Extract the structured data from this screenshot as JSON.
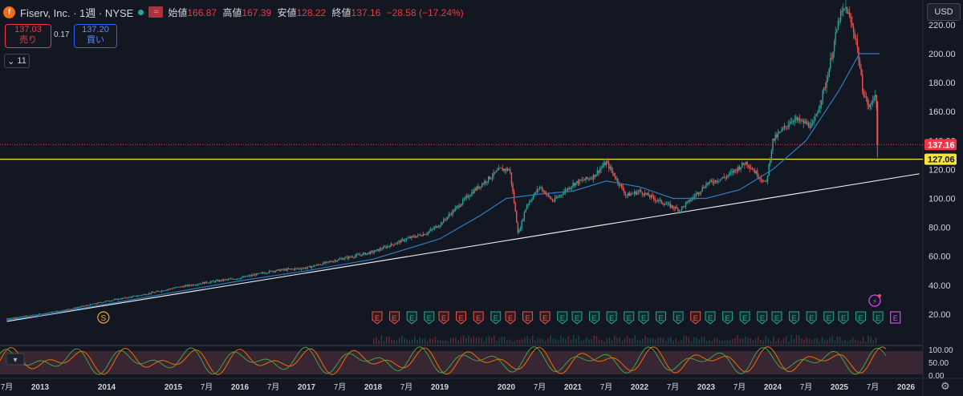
{
  "header": {
    "logo_letter": "f",
    "title": "Fiserv, Inc. · 1週 · NYSE",
    "wave_icon": "≈",
    "open_label": "始値",
    "open": "166.87",
    "high_label": "高値",
    "high": "167.39",
    "low_label": "安値",
    "low": "128.22",
    "close_label": "終値",
    "close": "137.16",
    "change": "−28.58 (−17.24%)"
  },
  "trade": {
    "sell_price": "137.03",
    "sell_label": "売り",
    "spread": "0.17",
    "buy_price": "137.20",
    "buy_label": "買い"
  },
  "indicator_toggle": "11",
  "currency": "USD",
  "colors": {
    "bg": "#131722",
    "up": "#26a69a",
    "down": "#ef5350",
    "ma": "#2e7bbf",
    "yellow": "#f5e342",
    "trend": "#e8e8e8",
    "close_tag": "#f23645"
  },
  "chart_data": {
    "type": "candlestick",
    "ylim": [
      0,
      240
    ],
    "y_ticks": [
      "20.00",
      "40.00",
      "60.00",
      "80.00",
      "100.00",
      "120.00",
      "140.00",
      "160.00",
      "180.00",
      "200.00",
      "220.00"
    ],
    "y_tick_values": [
      20,
      40,
      60,
      80,
      100,
      120,
      140,
      160,
      180,
      200,
      220
    ],
    "x_ticks": [
      "7月",
      "2013",
      "2014",
      "2015",
      "7月",
      "2016",
      "7月",
      "2017",
      "7月",
      "2018",
      "7月",
      "2019",
      "2020",
      "7月",
      "2021",
      "7月",
      "2022",
      "7月",
      "2023",
      "7月",
      "2024",
      "7月",
      "2025",
      "7月",
      "2026"
    ],
    "x_tick_dates": [
      2012.5,
      2013,
      2014,
      2015,
      2015.5,
      2016,
      2016.5,
      2017,
      2017.5,
      2018,
      2018.5,
      2019,
      2020,
      2020.5,
      2021,
      2021.5,
      2022,
      2022.5,
      2023,
      2023.5,
      2024,
      2024.5,
      2025,
      2025.5,
      2026
    ],
    "price_path": [
      [
        2012.5,
        17
      ],
      [
        2013,
        20
      ],
      [
        2013.5,
        24
      ],
      [
        2014,
        29
      ],
      [
        2014.5,
        33
      ],
      [
        2015,
        38
      ],
      [
        2015.5,
        42
      ],
      [
        2016,
        45
      ],
      [
        2016.5,
        50
      ],
      [
        2017,
        52
      ],
      [
        2017.5,
        58
      ],
      [
        2018,
        63
      ],
      [
        2018.5,
        72
      ],
      [
        2018.8,
        76
      ],
      [
        2019,
        82
      ],
      [
        2019.5,
        105
      ],
      [
        2019.9,
        120
      ],
      [
        2020.05,
        120
      ],
      [
        2020.18,
        75
      ],
      [
        2020.3,
        95
      ],
      [
        2020.5,
        108
      ],
      [
        2020.7,
        98
      ],
      [
        2021,
        110
      ],
      [
        2021.3,
        115
      ],
      [
        2021.5,
        125
      ],
      [
        2021.8,
        102
      ],
      [
        2022,
        105
      ],
      [
        2022.3,
        98
      ],
      [
        2022.6,
        92
      ],
      [
        2022.9,
        105
      ],
      [
        2023,
        110
      ],
      [
        2023.3,
        115
      ],
      [
        2023.6,
        125
      ],
      [
        2023.8,
        115
      ],
      [
        2023.9,
        110
      ],
      [
        2024,
        140
      ],
      [
        2024.3,
        155
      ],
      [
        2024.6,
        150
      ],
      [
        2024.8,
        180
      ],
      [
        2025,
        225
      ],
      [
        2025.1,
        232
      ],
      [
        2025.25,
        210
      ],
      [
        2025.35,
        175
      ],
      [
        2025.45,
        162
      ],
      [
        2025.55,
        175
      ],
      [
        2025.57,
        137.16
      ]
    ],
    "ma_path": [
      [
        2012.5,
        16
      ],
      [
        2013,
        19
      ],
      [
        2014,
        27
      ],
      [
        2015,
        35
      ],
      [
        2016,
        43
      ],
      [
        2017,
        50
      ],
      [
        2018,
        58
      ],
      [
        2019,
        72
      ],
      [
        2019.6,
        88
      ],
      [
        2020,
        100
      ],
      [
        2020.5,
        103
      ],
      [
        2021,
        105
      ],
      [
        2021.5,
        112
      ],
      [
        2022,
        108
      ],
      [
        2022.5,
        100
      ],
      [
        2023,
        100
      ],
      [
        2023.5,
        106
      ],
      [
        2024,
        120
      ],
      [
        2024.5,
        140
      ],
      [
        2025,
        175
      ],
      [
        2025.3,
        200
      ],
      [
        2025.6,
        200
      ]
    ],
    "trend_line": [
      [
        2012.5,
        15
      ],
      [
        2026.2,
        117
      ]
    ],
    "hline": 127.06,
    "hline_label": "127.06",
    "last_close": 137.16,
    "last_close_label": "137.16",
    "earnings": {
      "label": "E",
      "red": [
        2018.06,
        2018.32,
        2019.06,
        2019.32,
        2019.58,
        2020.06,
        2020.32,
        2020.58,
        2022.84
      ],
      "green": [
        2018.58,
        2018.84,
        2019.84,
        2020.84,
        2021.06,
        2021.32,
        2021.58,
        2021.84,
        2022.06,
        2022.32,
        2022.58,
        2023.06,
        2023.32,
        2023.58,
        2023.84,
        2024.06,
        2024.32,
        2024.58,
        2024.84,
        2025.06,
        2025.32,
        2025.58
      ],
      "upcoming": 2025.84
    },
    "dividend": {
      "label": "S",
      "date": 2013.95
    },
    "oscillator": {
      "levels": [
        "100.00",
        "50.00",
        "0.00"
      ],
      "level_values": [
        100,
        50,
        0
      ]
    }
  }
}
